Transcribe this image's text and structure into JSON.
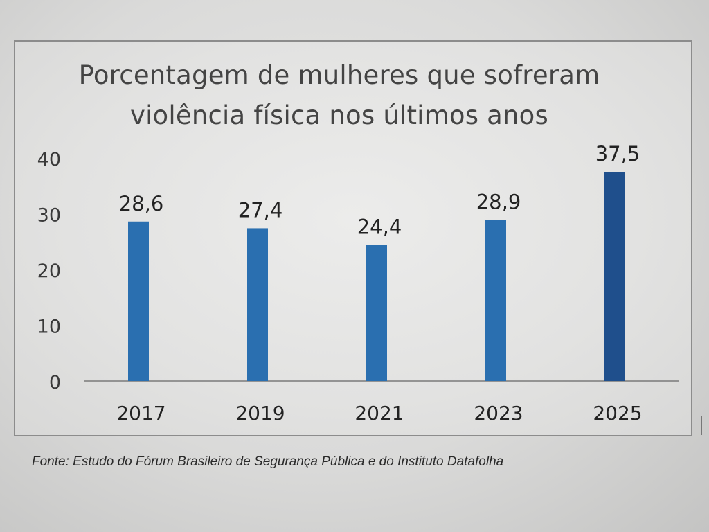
{
  "chart_data": {
    "type": "bar",
    "title_lines": [
      "Porcentagem de mulheres que sofreram",
      "violência física nos últimos anos"
    ],
    "categories": [
      "2017",
      "2019",
      "2021",
      "2023",
      "2025"
    ],
    "values": [
      28.6,
      27.4,
      24.4,
      28.9,
      37.5
    ],
    "value_labels": [
      "28,6",
      "27,4",
      "24,4",
      "28,9",
      "37,5"
    ],
    "y_ticks": [
      0,
      10,
      20,
      30,
      40
    ],
    "ylim": [
      0,
      40
    ],
    "grid": false,
    "legend": "none",
    "colors": {
      "bar": "#2a6fb0",
      "bar_last": "#1f4f8c",
      "axis_line": "#7a7a7a",
      "text": "#222222"
    }
  },
  "source": "Fonte: Estudo do Fórum Brasileiro de Segurança Pública e do Instituto Datafolha"
}
